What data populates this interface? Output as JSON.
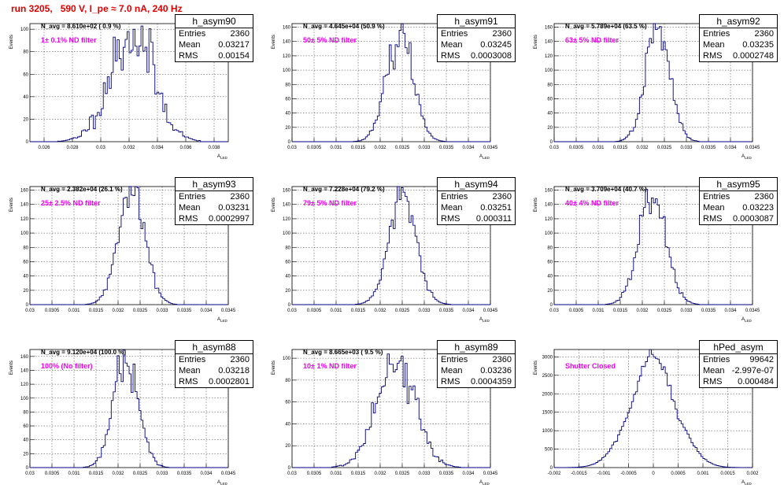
{
  "page": {
    "title": "run 3205,   590 V, I_pe ≈ 7.0 nA, 240 Hz",
    "title_color": "#e00000"
  },
  "colors": {
    "line": "#000080",
    "annotation": "#ee00ee",
    "grid": "#000000"
  },
  "panels": [
    {
      "n_avg": "N_avg = 8.610e+02 ( 0.9 %)",
      "annotation": "1± 0.1% ND filter",
      "stats": {
        "title": "h_asym90",
        "entries_label": "Entries",
        "entries": "2360",
        "mean_label": "Mean",
        "mean": "0.03217",
        "rms_label": "RMS",
        "rms": "0.00154"
      },
      "ylabel": "Events",
      "xlabel": "A",
      "x_ticks": [
        "0.026",
        "0.028",
        "0.03",
        "0.032",
        "0.034",
        "0.036",
        "0.038"
      ],
      "y_ticks": [
        "0",
        "20",
        "40",
        "60",
        "80",
        "100"
      ]
    },
    {
      "n_avg": "N_avg = 4.645e+04 (50.9 %)",
      "annotation": "50± 5% ND filter",
      "stats": {
        "title": "h_asym91",
        "entries_label": "Entries",
        "entries": "2360",
        "mean_label": "Mean",
        "mean": "0.03245",
        "rms_label": "RMS",
        "rms": "0.0003008"
      },
      "ylabel": "Events",
      "xlabel": "A",
      "x_ticks": [
        "0.03",
        "0.0305",
        "0.031",
        "0.0315",
        "0.032",
        "0.0325",
        "0.033",
        "0.0335",
        "0.034",
        "0.0345"
      ],
      "y_ticks": [
        "0",
        "20",
        "40",
        "60",
        "80",
        "100",
        "120",
        "140",
        "160"
      ]
    },
    {
      "n_avg": "N_avg = 5.789e+04 (63.5 %)",
      "annotation": "63± 5% ND filter",
      "stats": {
        "title": "h_asym92",
        "entries_label": "Entries",
        "entries": "2360",
        "mean_label": "Mean",
        "mean": "0.03235",
        "rms_label": "RMS",
        "rms": "0.0002748"
      },
      "ylabel": "Events",
      "xlabel": "A",
      "x_ticks": [
        "0.03",
        "0.0305",
        "0.031",
        "0.0315",
        "0.032",
        "0.0325",
        "0.033",
        "0.0335",
        "0.034",
        "0.0345"
      ],
      "y_ticks": [
        "0",
        "20",
        "40",
        "60",
        "80",
        "100",
        "120",
        "140",
        "160"
      ]
    },
    {
      "n_avg": "N_avg = 2.382e+04 (26.1 %)",
      "annotation": "25± 2.5% ND filter",
      "stats": {
        "title": "h_asym93",
        "entries_label": "Entries",
        "entries": "2360",
        "mean_label": "Mean",
        "mean": "0.03231",
        "rms_label": "RMS",
        "rms": "0.0002997"
      },
      "ylabel": "Events",
      "xlabel": "A",
      "x_ticks": [
        "0.03",
        "0.0305",
        "0.031",
        "0.0315",
        "0.032",
        "0.0325",
        "0.033",
        "0.0335",
        "0.034",
        "0.0345"
      ],
      "y_ticks": [
        "0",
        "20",
        "40",
        "60",
        "80",
        "100",
        "120",
        "140",
        "160"
      ]
    },
    {
      "n_avg": "N_avg = 7.228e+04 (79.2 %)",
      "annotation": "79± 5% ND filter",
      "stats": {
        "title": "h_asym94",
        "entries_label": "Entries",
        "entries": "2360",
        "mean_label": "Mean",
        "mean": "0.03251",
        "rms_label": "RMS",
        "rms": "0.000311"
      },
      "ylabel": "Events",
      "xlabel": "A",
      "x_ticks": [
        "0.03",
        "0.0305",
        "0.031",
        "0.0315",
        "0.032",
        "0.0325",
        "0.033",
        "0.0335",
        "0.034",
        "0.0345"
      ],
      "y_ticks": [
        "0",
        "20",
        "40",
        "60",
        "80",
        "100",
        "120",
        "140",
        "160"
      ]
    },
    {
      "n_avg": "N_avg = 3.709e+04 (40.7 %)",
      "annotation": "40± 4% ND filter",
      "stats": {
        "title": "h_asym95",
        "entries_label": "Entries",
        "entries": "2360",
        "mean_label": "Mean",
        "mean": "0.03223",
        "rms_label": "RMS",
        "rms": "0.0003087"
      },
      "ylabel": "Events",
      "xlabel": "A",
      "x_ticks": [
        "0.03",
        "0.0305",
        "0.031",
        "0.0315",
        "0.032",
        "0.0325",
        "0.033",
        "0.0335",
        "0.034",
        "0.0345"
      ],
      "y_ticks": [
        "0",
        "20",
        "40",
        "60",
        "80",
        "100",
        "120",
        "140",
        "160"
      ]
    },
    {
      "n_avg": "N_avg = 9.120e+04 (100.0 %)",
      "annotation": "100% (No filter)",
      "stats": {
        "title": "h_asym88",
        "entries_label": "Entries",
        "entries": "2360",
        "mean_label": "Mean",
        "mean": "0.03218",
        "rms_label": "RMS",
        "rms": "0.0002801"
      },
      "ylabel": "Events",
      "xlabel": "A",
      "x_ticks": [
        "0.03",
        "0.0305",
        "0.031",
        "0.0315",
        "0.032",
        "0.0325",
        "0.033",
        "0.0335",
        "0.034",
        "0.0345"
      ],
      "y_ticks": [
        "0",
        "20",
        "40",
        "60",
        "80",
        "100",
        "120",
        "140",
        "160"
      ]
    },
    {
      "n_avg": "N_avg = 8.665e+03 ( 9.5 %)",
      "annotation": "10± 1% ND filter",
      "stats": {
        "title": "h_asym89",
        "entries_label": "Entries",
        "entries": "2360",
        "mean_label": "Mean",
        "mean": "0.03236",
        "rms_label": "RMS",
        "rms": "0.0004359"
      },
      "ylabel": "Events",
      "xlabel": "A",
      "x_ticks": [
        "0.03",
        "0.0305",
        "0.031",
        "0.0315",
        "0.032",
        "0.0325",
        "0.033",
        "0.0335",
        "0.034",
        "0.0345"
      ],
      "y_ticks": [
        "0",
        "20",
        "40",
        "60",
        "80",
        "100"
      ]
    },
    {
      "n_avg": "",
      "annotation": "Shutter Closed",
      "stats": {
        "title": "hPed_asym",
        "entries_label": "Entries",
        "entries": "99642",
        "mean_label": "Mean",
        "mean": "-2.997e-07",
        "rms_label": "RMS",
        "rms": "0.000484"
      },
      "ylabel": "Events",
      "xlabel": "A",
      "x_ticks": [
        "-0.002",
        "-0.0015",
        "-0.001",
        "-0.0005",
        "0",
        "0.0005",
        "0.001",
        "0.0015",
        "0.002"
      ],
      "y_ticks": [
        "0",
        "500",
        "1000",
        "1500",
        "2000",
        "2500",
        "3000"
      ]
    }
  ],
  "chart_data": [
    {
      "type": "bar",
      "name": "h_asym90",
      "xlim": [
        0.025,
        0.039
      ],
      "ylim": [
        0,
        105
      ],
      "mean": 0.03217,
      "rms": 0.00154,
      "peak": 98,
      "seed": 11,
      "noise": 0.2
    },
    {
      "type": "bar",
      "name": "h_asym91",
      "xlim": [
        0.03,
        0.0345
      ],
      "ylim": [
        0,
        165
      ],
      "mean": 0.03245,
      "rms": 0.0003008,
      "peak": 150,
      "seed": 23,
      "noise": 0.1
    },
    {
      "type": "bar",
      "name": "h_asym92",
      "xlim": [
        0.03,
        0.0345
      ],
      "ylim": [
        0,
        165
      ],
      "mean": 0.03235,
      "rms": 0.0002748,
      "peak": 158,
      "seed": 37,
      "noise": 0.1
    },
    {
      "type": "bar",
      "name": "h_asym93",
      "xlim": [
        0.03,
        0.0345
      ],
      "ylim": [
        0,
        165
      ],
      "mean": 0.03231,
      "rms": 0.0002997,
      "peak": 162,
      "seed": 41,
      "noise": 0.1
    },
    {
      "type": "bar",
      "name": "h_asym94",
      "xlim": [
        0.03,
        0.0345
      ],
      "ylim": [
        0,
        165
      ],
      "mean": 0.03251,
      "rms": 0.000311,
      "peak": 150,
      "seed": 53,
      "noise": 0.1
    },
    {
      "type": "bar",
      "name": "h_asym95",
      "xlim": [
        0.03,
        0.0345
      ],
      "ylim": [
        0,
        165
      ],
      "mean": 0.03223,
      "rms": 0.0003087,
      "peak": 155,
      "seed": 67,
      "noise": 0.1
    },
    {
      "type": "bar",
      "name": "h_asym88",
      "xlim": [
        0.03,
        0.0345
      ],
      "ylim": [
        0,
        170
      ],
      "mean": 0.03218,
      "rms": 0.0002801,
      "peak": 162,
      "seed": 79,
      "noise": 0.1
    },
    {
      "type": "bar",
      "name": "h_asym89",
      "xlim": [
        0.03,
        0.0345
      ],
      "ylim": [
        0,
        108
      ],
      "mean": 0.03236,
      "rms": 0.0004359,
      "peak": 100,
      "seed": 83,
      "noise": 0.14
    },
    {
      "type": "bar",
      "name": "hPed_asym",
      "xlim": [
        -0.002,
        0.002
      ],
      "ylim": [
        0,
        3200
      ],
      "mean": -2.997e-07,
      "rms": 0.000484,
      "peak": 3000,
      "seed": 97,
      "noise": 0.04,
      "bimodal": true
    }
  ]
}
